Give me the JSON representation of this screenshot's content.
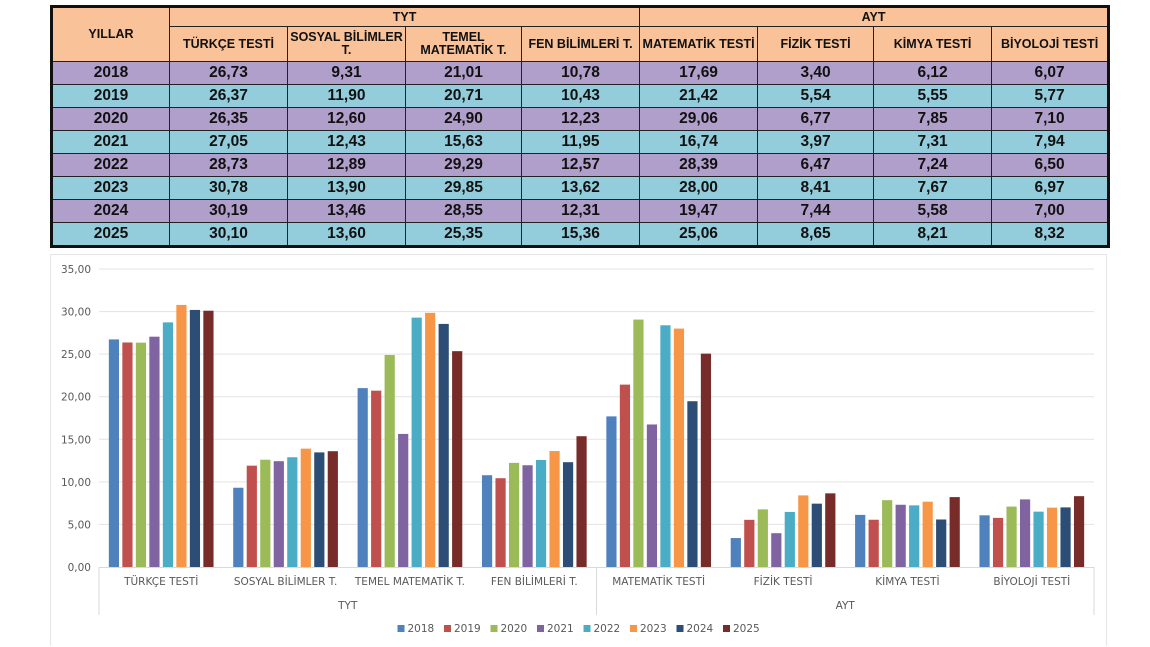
{
  "table": {
    "year_header": "YILLAR",
    "groups": [
      {
        "label": "TYT",
        "columns": [
          "TÜRKÇE TESTİ",
          "SOSYAL BİLİMLER T.",
          "TEMEL MATEMATİK T.",
          "FEN BİLİMLERİ T."
        ]
      },
      {
        "label": "AYT",
        "columns": [
          "MATEMATİK TESTİ",
          "FİZİK TESTİ",
          "KİMYA TESTİ",
          "BİYOLOJİ TESTİ"
        ]
      }
    ],
    "rows": [
      {
        "year": "2018",
        "values": [
          "26,73",
          "9,31",
          "21,01",
          "10,78",
          "17,69",
          "3,40",
          "6,12",
          "6,07"
        ]
      },
      {
        "year": "2019",
        "values": [
          "26,37",
          "11,90",
          "20,71",
          "10,43",
          "21,42",
          "5,54",
          "5,55",
          "5,77"
        ]
      },
      {
        "year": "2020",
        "values": [
          "26,35",
          "12,60",
          "24,90",
          "12,23",
          "29,06",
          "6,77",
          "7,85",
          "7,10"
        ]
      },
      {
        "year": "2021",
        "values": [
          "27,05",
          "12,43",
          "15,63",
          "11,95",
          "16,74",
          "3,97",
          "7,31",
          "7,94"
        ]
      },
      {
        "year": "2022",
        "values": [
          "28,73",
          "12,89",
          "29,29",
          "12,57",
          "28,39",
          "6,47",
          "7,24",
          "6,50"
        ]
      },
      {
        "year": "2023",
        "values": [
          "30,78",
          "13,90",
          "29,85",
          "13,62",
          "28,00",
          "8,41",
          "7,67",
          "6,97"
        ]
      },
      {
        "year": "2024",
        "values": [
          "30,19",
          "13,46",
          "28,55",
          "12,31",
          "19,47",
          "7,44",
          "5,58",
          "7,00"
        ]
      },
      {
        "year": "2025",
        "values": [
          "30,10",
          "13,60",
          "25,35",
          "15,36",
          "25,06",
          "8,65",
          "8,21",
          "8,32"
        ]
      }
    ],
    "colors": {
      "header": "#f9c298",
      "row_odd": "#b09fcb",
      "row_even": "#93ccdb"
    }
  },
  "chart_data": {
    "type": "bar",
    "title": "",
    "xlabel": "",
    "ylabel": "",
    "ylim": [
      0,
      35
    ],
    "y_ticks": [
      "0,00",
      "5,00",
      "10,00",
      "15,00",
      "20,00",
      "25,00",
      "30,00",
      "35,00"
    ],
    "y_tick_values": [
      0,
      5,
      10,
      15,
      20,
      25,
      30,
      35
    ],
    "grid": true,
    "legend_position": "bottom",
    "categories": [
      "TÜRKÇE TESTİ",
      "SOSYAL BİLİMLER T.",
      "TEMEL MATEMATİK T.",
      "FEN BİLİMLERİ T.",
      "MATEMATİK TESTİ",
      "FİZİK TESTİ",
      "KİMYA TESTİ",
      "BİYOLOJİ TESTİ"
    ],
    "category_groups": [
      {
        "label": "TYT",
        "span": 4
      },
      {
        "label": "AYT",
        "span": 4
      }
    ],
    "series": [
      {
        "name": "2018",
        "color": "#4f81bd",
        "values": [
          26.73,
          9.31,
          21.01,
          10.78,
          17.69,
          3.4,
          6.12,
          6.07
        ]
      },
      {
        "name": "2019",
        "color": "#c0504d",
        "values": [
          26.37,
          11.9,
          20.71,
          10.43,
          21.42,
          5.54,
          5.55,
          5.77
        ]
      },
      {
        "name": "2020",
        "color": "#9bbb59",
        "values": [
          26.35,
          12.6,
          24.9,
          12.23,
          29.06,
          6.77,
          7.85,
          7.1
        ]
      },
      {
        "name": "2021",
        "color": "#8064a2",
        "values": [
          27.05,
          12.43,
          15.63,
          11.95,
          16.74,
          3.97,
          7.31,
          7.94
        ]
      },
      {
        "name": "2022",
        "color": "#4bacc6",
        "values": [
          28.73,
          12.89,
          29.29,
          12.57,
          28.39,
          6.47,
          7.24,
          6.5
        ]
      },
      {
        "name": "2023",
        "color": "#f79646",
        "values": [
          30.78,
          13.9,
          29.85,
          13.62,
          28.0,
          8.41,
          7.67,
          6.97
        ]
      },
      {
        "name": "2024",
        "color": "#2c4d75",
        "values": [
          30.19,
          13.46,
          28.55,
          12.31,
          19.47,
          7.44,
          5.58,
          7.0
        ]
      },
      {
        "name": "2025",
        "color": "#772c2a",
        "values": [
          30.1,
          13.6,
          25.35,
          15.36,
          25.06,
          8.65,
          8.21,
          8.32
        ]
      }
    ]
  }
}
